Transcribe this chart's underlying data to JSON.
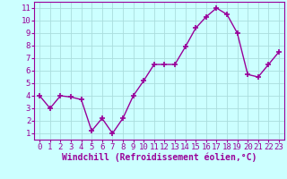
{
  "x": [
    0,
    1,
    2,
    3,
    4,
    5,
    6,
    7,
    8,
    9,
    10,
    11,
    12,
    13,
    14,
    15,
    16,
    17,
    18,
    19,
    20,
    21,
    22,
    23
  ],
  "y": [
    4.0,
    3.0,
    4.0,
    3.9,
    3.7,
    1.2,
    2.2,
    1.0,
    2.2,
    4.0,
    5.2,
    6.5,
    6.5,
    6.5,
    7.9,
    9.4,
    10.3,
    11.0,
    10.5,
    9.0,
    5.7,
    5.5,
    6.5,
    7.5
  ],
  "line_color": "#990099",
  "marker": "+",
  "marker_size": 4,
  "marker_linewidth": 1.2,
  "line_width": 1.0,
  "xlabel": "Windchill (Refroidissement éolien,°C)",
  "ylabel_ticks": [
    1,
    2,
    3,
    4,
    5,
    6,
    7,
    8,
    9,
    10,
    11
  ],
  "xlabel_ticks": [
    0,
    1,
    2,
    3,
    4,
    5,
    6,
    7,
    8,
    9,
    10,
    11,
    12,
    13,
    14,
    15,
    16,
    17,
    18,
    19,
    20,
    21,
    22,
    23
  ],
  "ylim": [
    0.5,
    11.5
  ],
  "xlim": [
    -0.5,
    23.5
  ],
  "bg_color": "#ccffff",
  "grid_color": "#aadddd",
  "color": "#990099",
  "tick_fontsize": 6.5,
  "xlabel_fontsize": 7.0,
  "spine_color": "#990099"
}
